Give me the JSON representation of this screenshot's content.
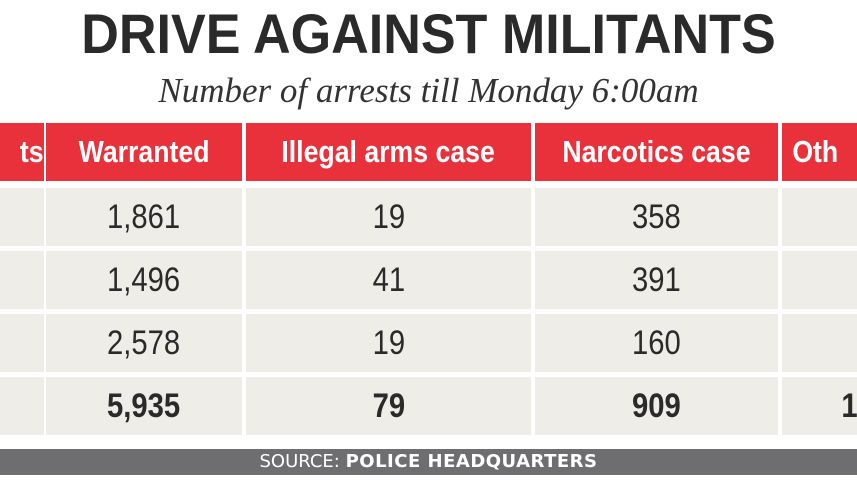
{
  "title": "DRIVE AGAINST MILITANTS",
  "subtitle": "Number of arrests till Monday 6:00am",
  "source": {
    "label": "SOURCE:",
    "value": "POLICE HEADQUARTERS"
  },
  "colors": {
    "header_bg": "#e8313a",
    "row_bg": "#efede8",
    "source_bg": "#6e6e70",
    "title": "#2a2a2a"
  },
  "chart_data": {
    "type": "table",
    "title": "DRIVE AGAINST MILITANTS",
    "subtitle": "Number of arrests till Monday 6:00am",
    "columns": [
      "ts",
      "Warranted",
      "Illegal arms case",
      "Narcotics case",
      "Oth"
    ],
    "rows": [
      [
        "",
        "1,861",
        "19",
        "358",
        ""
      ],
      [
        "",
        "1,496",
        "41",
        "391",
        ""
      ],
      [
        "",
        "2,578",
        "19",
        "160",
        ""
      ],
      [
        "",
        "5,935",
        "79",
        "909",
        "1"
      ]
    ],
    "total_row_index": 3
  }
}
